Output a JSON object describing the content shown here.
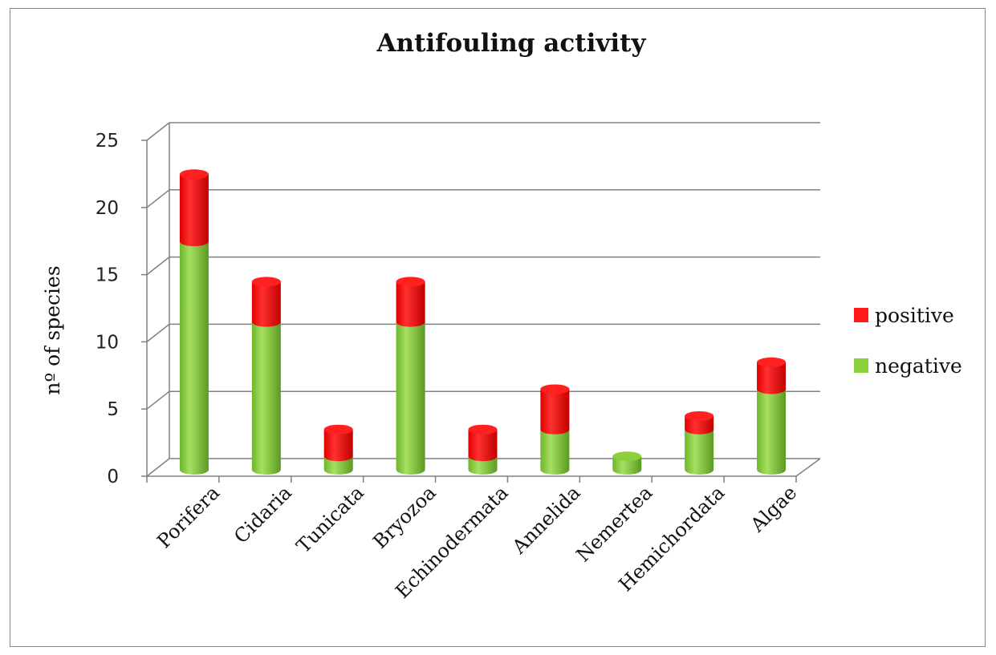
{
  "chart_data": {
    "type": "bar",
    "stacked": true,
    "style": "3d-cylinder",
    "title": "Antifouling activity",
    "xlabel": "",
    "ylabel": "nº of species",
    "ylim": [
      0,
      25
    ],
    "yticks": [
      "0",
      "5",
      "10",
      "15",
      "20",
      "25"
    ],
    "grid": true,
    "legend_position": "right",
    "categories": [
      "Porifera",
      "Cidaria",
      "Tunicata",
      "Bryozoa",
      "Echinodermata",
      "Annelida",
      "Nemertea",
      "Hemichordata",
      "Algae"
    ],
    "series": [
      {
        "name": "negative",
        "values": [
          17,
          11,
          1,
          11,
          1,
          3,
          1,
          3,
          6
        ],
        "color": "#8ccf3c"
      },
      {
        "name": "positive",
        "values": [
          5,
          3,
          2,
          3,
          2,
          3,
          0,
          1,
          2
        ],
        "color": "#ff1a1a"
      }
    ]
  },
  "legend": {
    "items": [
      {
        "label": "positive",
        "color": "#ff1a1a"
      },
      {
        "label": "negative",
        "color": "#8ccf3c"
      }
    ]
  }
}
